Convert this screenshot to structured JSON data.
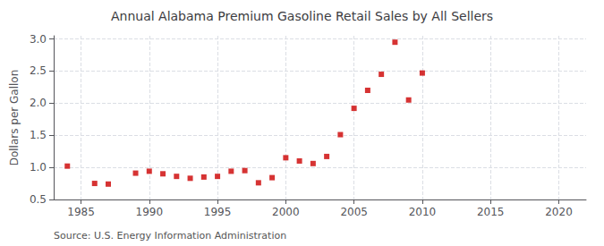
{
  "chart_data": {
    "type": "scatter",
    "title": "Annual Alabama Premium Gasoline Retail Sales by All Sellers",
    "ylabel": "Dollars per Gallon",
    "annotations": [
      "Source: U.S. Energy Information Administration"
    ],
    "x": [
      1984,
      1986,
      1987,
      1989,
      1990,
      1991,
      1992,
      1993,
      1994,
      1995,
      1996,
      1997,
      1998,
      1999,
      2000,
      2001,
      2002,
      2003,
      2004,
      2005,
      2006,
      2007,
      2008,
      2009,
      2010
    ],
    "values": [
      1.02,
      0.75,
      0.74,
      0.91,
      0.94,
      0.9,
      0.86,
      0.83,
      0.85,
      0.86,
      0.94,
      0.95,
      0.76,
      0.84,
      1.15,
      1.1,
      1.06,
      1.17,
      1.51,
      1.92,
      2.2,
      2.45,
      2.95,
      2.05,
      2.47
    ],
    "color": "#cc0000",
    "marker": "square",
    "xlim": [
      1983,
      2022
    ],
    "ylim": [
      0.5,
      3.05
    ],
    "xticks": [
      1985,
      1990,
      1995,
      2000,
      2005,
      2010,
      2015,
      2020
    ],
    "yticks": [
      0.5,
      {
        "value": 1.0,
        "label": "1.0"
      },
      1.5,
      {
        "value": 2.0,
        "label": "2.0"
      },
      2.5,
      {
        "value": 3.0,
        "label": "3.0"
      }
    ],
    "grid": true
  }
}
